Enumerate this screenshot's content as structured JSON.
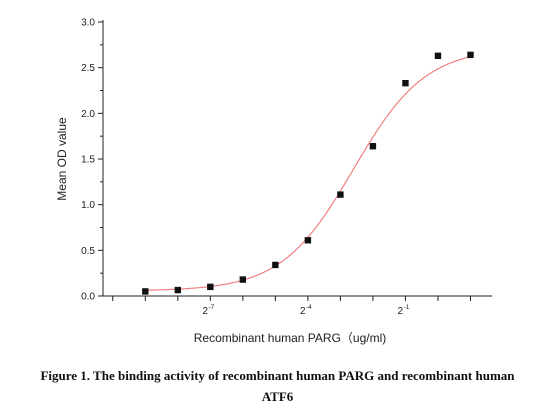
{
  "chart_data": {
    "type": "scatter",
    "fit_curve": "sigmoidal (4PL)",
    "ylabel": "Mean OD value",
    "xlabel": "Recombinant human  PARG（ug/ml)",
    "ylim": [
      0.0,
      3.0
    ],
    "y_ticks": [
      "0.0",
      "0.5",
      "1.0",
      "1.5",
      "2.0",
      "2.5",
      "3.0"
    ],
    "x_scale": "log2",
    "x_ticks": [
      {
        "base": "2",
        "exp": "-7"
      },
      {
        "base": "2",
        "exp": "-4"
      },
      {
        "base": "2",
        "exp": "-1"
      }
    ],
    "points": [
      {
        "x": "2^-9",
        "y": 0.05
      },
      {
        "x": "2^-8",
        "y": 0.065
      },
      {
        "x": "2^-7",
        "y": 0.1
      },
      {
        "x": "2^-6",
        "y": 0.18
      },
      {
        "x": "2^-5",
        "y": 0.34
      },
      {
        "x": "2^-4",
        "y": 0.61
      },
      {
        "x": "2^-3",
        "y": 1.11
      },
      {
        "x": "2^-2",
        "y": 1.64
      },
      {
        "x": "2^-1",
        "y": 2.33
      },
      {
        "x": "2^0",
        "y": 2.63
      },
      {
        "x": "2^1",
        "y": 2.64
      }
    ],
    "colors": {
      "curve": "#f08080",
      "marker": "#111111",
      "axis": "#222222"
    }
  },
  "caption": {
    "line1": "Figure 1. The binding activity of    recombinant human PARG and recombinant human",
    "line2": "ATF6"
  }
}
